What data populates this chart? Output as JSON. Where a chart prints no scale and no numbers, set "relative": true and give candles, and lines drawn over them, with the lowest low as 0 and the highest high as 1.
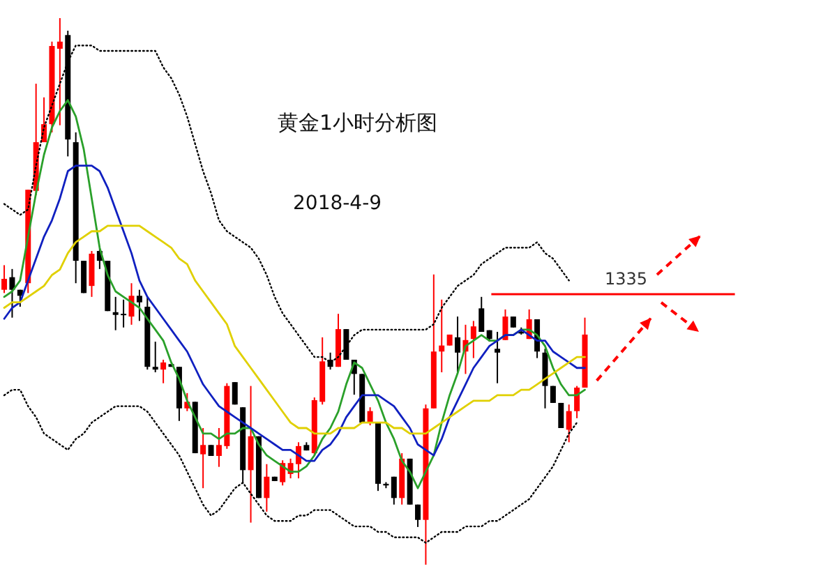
{
  "chart_data": {
    "type": "candlestick",
    "title": "黄金1小时分析图",
    "subtitle": "2018-4-9",
    "relative": true,
    "categories": [
      null,
      null,
      null,
      null,
      null,
      null,
      null,
      null,
      null,
      null,
      null,
      null,
      null,
      null,
      null,
      null,
      null,
      null,
      null,
      null,
      null,
      null,
      null,
      null,
      null,
      null,
      null,
      null,
      null,
      null,
      null,
      null,
      null,
      null,
      null,
      null,
      null,
      null,
      null,
      null,
      null,
      null,
      null,
      null,
      null,
      null,
      null,
      null,
      null,
      null,
      null,
      null,
      null,
      null,
      null,
      null,
      null,
      null,
      null,
      null,
      null,
      null,
      null,
      null,
      null,
      null,
      null,
      null,
      null,
      null,
      null,
      null,
      null,
      null
    ],
    "ohlc": [
      [
        0.503,
        0.548,
        0.497,
        0.523
      ],
      [
        0.526,
        0.541,
        0.452,
        0.503
      ],
      [
        0.503,
        0.503,
        0.472,
        0.492
      ],
      [
        0.515,
        0.686,
        0.497,
        0.686
      ],
      [
        0.684,
        0.88,
        0.676,
        0.773
      ],
      [
        0.773,
        0.855,
        0.773,
        0.806
      ],
      [
        0.806,
        0.957,
        0.791,
        0.949
      ],
      [
        0.944,
        1.0,
        0.804,
        0.957
      ],
      [
        0.969,
        0.977,
        0.747,
        0.778
      ],
      [
        0.773,
        0.791,
        0.515,
        0.556
      ],
      [
        0.556,
        0.556,
        0.497,
        0.497
      ],
      [
        0.51,
        0.574,
        0.49,
        0.569
      ],
      [
        0.574,
        0.579,
        0.541,
        0.556
      ],
      [
        0.556,
        0.556,
        0.464,
        0.464
      ],
      [
        0.462,
        0.49,
        0.429,
        0.457
      ],
      [
        0.459,
        0.485,
        0.434,
        0.457
      ],
      [
        0.454,
        0.515,
        0.439,
        0.492
      ],
      [
        0.492,
        0.503,
        0.446,
        0.48
      ],
      [
        0.472,
        0.49,
        0.357,
        0.362
      ],
      [
        0.362,
        0.408,
        0.352,
        0.357
      ],
      [
        0.357,
        0.375,
        0.332,
        0.37
      ],
      [
        0.367,
        0.367,
        0.362,
        0.362
      ],
      [
        0.362,
        0.362,
        0.263,
        0.286
      ],
      [
        0.286,
        0.314,
        0.281,
        0.298
      ],
      [
        0.298,
        0.298,
        0.204,
        0.204
      ],
      [
        0.202,
        0.25,
        0.14,
        0.219
      ],
      [
        0.219,
        0.219,
        0.199,
        0.199
      ],
      [
        0.199,
        0.25,
        0.179,
        0.219
      ],
      [
        0.217,
        0.332,
        0.212,
        0.327
      ],
      [
        0.334,
        0.334,
        0.293,
        0.293
      ],
      [
        0.288,
        0.288,
        0.148,
        0.173
      ],
      [
        0.173,
        0.327,
        0.077,
        0.235
      ],
      [
        0.235,
        0.235,
        0.122,
        0.122
      ],
      [
        0.122,
        0.184,
        0.097,
        0.161
      ],
      [
        0.161,
        0.161,
        0.153,
        0.153
      ],
      [
        0.151,
        0.191,
        0.145,
        0.186
      ],
      [
        0.166,
        0.194,
        0.158,
        0.186
      ],
      [
        0.184,
        0.224,
        0.158,
        0.217
      ],
      [
        0.219,
        0.224,
        0.209,
        0.209
      ],
      [
        0.204,
        0.306,
        0.199,
        0.301
      ],
      [
        0.298,
        0.416,
        0.293,
        0.372
      ],
      [
        0.375,
        0.388,
        0.357,
        0.362
      ],
      [
        0.362,
        0.459,
        0.362,
        0.431
      ],
      [
        0.431,
        0.431,
        0.375,
        0.375
      ],
      [
        0.375,
        0.375,
        0.311,
        0.349
      ],
      [
        0.349,
        0.349,
        0.26,
        0.26
      ],
      [
        0.26,
        0.288,
        0.255,
        0.281
      ],
      [
        0.26,
        0.26,
        0.135,
        0.148
      ],
      [
        0.148,
        0.151,
        0.14,
        0.145
      ],
      [
        0.161,
        0.161,
        0.11,
        0.122
      ],
      [
        0.122,
        0.204,
        0.11,
        0.194
      ],
      [
        0.194,
        0.194,
        0.11,
        0.11
      ],
      [
        0.11,
        0.11,
        0.069,
        0.082
      ],
      [
        0.082,
        0.293,
        0.0,
        0.286
      ],
      [
        0.286,
        0.531,
        0.286,
        0.39
      ],
      [
        0.39,
        0.485,
        0.352,
        0.401
      ],
      [
        0.401,
        0.421,
        0.401,
        0.421
      ],
      [
        0.416,
        0.454,
        0.352,
        0.388
      ],
      [
        0.39,
        0.439,
        0.349,
        0.411
      ],
      [
        0.413,
        0.446,
        0.378,
        0.436
      ],
      [
        0.469,
        0.49,
        0.426,
        0.426
      ],
      [
        0.429,
        0.429,
        0.408,
        0.413
      ],
      [
        0.395,
        0.426,
        0.332,
        0.388
      ],
      [
        0.411,
        0.467,
        0.411,
        0.454
      ],
      [
        0.454,
        0.454,
        0.434,
        0.434
      ],
      [
        0.426,
        0.434,
        0.421,
        0.423
      ],
      [
        0.413,
        0.467,
        0.413,
        0.449
      ],
      [
        0.449,
        0.449,
        0.378,
        0.39
      ],
      [
        0.388,
        0.395,
        0.286,
        0.327
      ],
      [
        0.327,
        0.327,
        0.296,
        0.296
      ],
      [
        0.296,
        0.296,
        0.25,
        0.25
      ],
      [
        0.247,
        0.293,
        0.224,
        0.281
      ],
      [
        0.281,
        0.327,
        0.268,
        0.324
      ],
      [
        0.324,
        0.452,
        0.324,
        0.421
      ]
    ],
    "series": [
      {
        "type": "line",
        "color": "#2aa02a",
        "line_style": "solid",
        "values": [
          0.49,
          0.5,
          0.52,
          0.6,
          0.68,
          0.75,
          0.8,
          0.83,
          0.85,
          0.82,
          0.76,
          0.67,
          0.58,
          0.53,
          0.5,
          0.49,
          0.48,
          0.47,
          0.45,
          0.43,
          0.41,
          0.37,
          0.34,
          0.3,
          0.27,
          0.24,
          0.24,
          0.23,
          0.24,
          0.24,
          0.25,
          0.25,
          0.22,
          0.2,
          0.19,
          0.18,
          0.17,
          0.17,
          0.18,
          0.2,
          0.23,
          0.25,
          0.28,
          0.33,
          0.37,
          0.36,
          0.33,
          0.3,
          0.26,
          0.23,
          0.19,
          0.17,
          0.14,
          0.17,
          0.2,
          0.26,
          0.31,
          0.35,
          0.4,
          0.41,
          0.42,
          0.41,
          0.41,
          0.42,
          0.42,
          0.43,
          0.43,
          0.42,
          0.4,
          0.36,
          0.33,
          0.31,
          0.31,
          0.32
        ]
      },
      {
        "type": "line",
        "color": "#1020c0",
        "line_style": "solid",
        "values": [
          0.45,
          0.47,
          0.48,
          0.52,
          0.56,
          0.6,
          0.63,
          0.67,
          0.72,
          0.73,
          0.73,
          0.73,
          0.72,
          0.69,
          0.65,
          0.61,
          0.57,
          0.52,
          0.49,
          0.47,
          0.45,
          0.43,
          0.41,
          0.39,
          0.36,
          0.33,
          0.31,
          0.29,
          0.28,
          0.27,
          0.26,
          0.25,
          0.24,
          0.23,
          0.22,
          0.21,
          0.21,
          0.2,
          0.19,
          0.19,
          0.21,
          0.22,
          0.24,
          0.27,
          0.29,
          0.31,
          0.31,
          0.31,
          0.3,
          0.29,
          0.27,
          0.25,
          0.22,
          0.21,
          0.2,
          0.23,
          0.27,
          0.3,
          0.33,
          0.36,
          0.38,
          0.4,
          0.41,
          0.42,
          0.42,
          0.43,
          0.42,
          0.41,
          0.41,
          0.39,
          0.38,
          0.37,
          0.36,
          0.36
        ]
      },
      {
        "type": "line",
        "color": "#e0d000",
        "line_style": "solid",
        "values": [
          0.47,
          0.48,
          0.48,
          0.49,
          0.5,
          0.51,
          0.53,
          0.54,
          0.57,
          0.59,
          0.6,
          0.61,
          0.61,
          0.62,
          0.62,
          0.62,
          0.62,
          0.62,
          0.61,
          0.6,
          0.59,
          0.58,
          0.56,
          0.55,
          0.52,
          0.5,
          0.48,
          0.46,
          0.44,
          0.4,
          0.38,
          0.36,
          0.34,
          0.32,
          0.3,
          0.28,
          0.26,
          0.25,
          0.25,
          0.24,
          0.24,
          0.24,
          0.25,
          0.25,
          0.25,
          0.26,
          0.26,
          0.26,
          0.26,
          0.25,
          0.25,
          0.24,
          0.24,
          0.24,
          0.25,
          0.26,
          0.27,
          0.28,
          0.29,
          0.3,
          0.3,
          0.3,
          0.31,
          0.31,
          0.31,
          0.32,
          0.32,
          0.33,
          0.34,
          0.35,
          0.36,
          0.37,
          0.38,
          0.38
        ]
      },
      {
        "type": "line",
        "color": "#000000",
        "line_style": "dotted",
        "values": [
          0.66,
          0.65,
          0.64,
          0.65,
          0.73,
          0.8,
          0.84,
          0.88,
          0.92,
          0.95,
          0.95,
          0.95,
          0.94,
          0.94,
          0.94,
          0.94,
          0.94,
          0.94,
          0.94,
          0.94,
          0.91,
          0.89,
          0.86,
          0.82,
          0.77,
          0.72,
          0.68,
          0.63,
          0.61,
          0.6,
          0.59,
          0.58,
          0.56,
          0.53,
          0.49,
          0.46,
          0.44,
          0.42,
          0.4,
          0.38,
          0.38,
          0.37,
          0.38,
          0.4,
          0.42,
          0.43,
          0.43,
          0.43,
          0.43,
          0.43,
          0.43,
          0.43,
          0.43,
          0.43,
          0.44,
          0.47,
          0.49,
          0.51,
          0.52,
          0.53,
          0.55,
          0.56,
          0.57,
          0.58,
          0.58,
          0.58,
          0.58,
          0.59,
          0.57,
          0.56,
          0.54,
          0.52,
          null,
          null
        ]
      },
      {
        "type": "line",
        "color": "#000000",
        "line_style": "dotted",
        "values": [
          0.31,
          0.32,
          0.32,
          0.29,
          0.27,
          0.24,
          0.23,
          0.22,
          0.21,
          0.23,
          0.24,
          0.26,
          0.27,
          0.28,
          0.29,
          0.29,
          0.29,
          0.29,
          0.28,
          0.26,
          0.24,
          0.22,
          0.2,
          0.17,
          0.14,
          0.11,
          0.09,
          0.1,
          0.12,
          0.14,
          0.15,
          0.13,
          0.11,
          0.09,
          0.08,
          0.08,
          0.08,
          0.09,
          0.09,
          0.1,
          0.1,
          0.1,
          0.09,
          0.08,
          0.07,
          0.07,
          0.07,
          0.06,
          0.06,
          0.05,
          0.05,
          0.05,
          0.05,
          0.04,
          0.05,
          0.06,
          0.06,
          0.06,
          0.07,
          0.07,
          0.07,
          0.08,
          0.08,
          0.09,
          0.1,
          0.11,
          0.12,
          0.14,
          0.16,
          0.18,
          0.21,
          0.24,
          0.26,
          null
        ]
      }
    ],
    "ref_lines": [
      {
        "axis": "y",
        "value": 0.495,
        "color": "#ff0000",
        "line_style": "solid"
      }
    ],
    "annotations": [
      "1335"
    ]
  }
}
